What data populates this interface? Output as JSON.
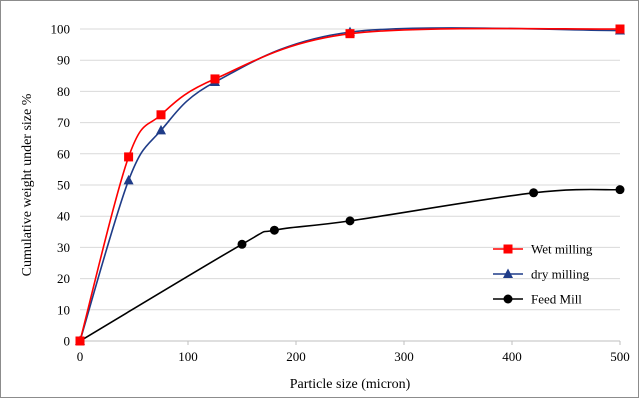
{
  "chart_data": {
    "type": "line",
    "title": "",
    "xlabel": "Particle size (micron)",
    "ylabel": "Cumulative weight under size %",
    "xlim": [
      0,
      500
    ],
    "ylim": [
      0,
      100
    ],
    "x_ticks": [
      0,
      100,
      200,
      300,
      400,
      500
    ],
    "y_ticks": [
      0,
      10,
      20,
      30,
      40,
      50,
      60,
      70,
      80,
      90,
      100
    ],
    "grid": "horizontal",
    "legend_position": "right-middle",
    "series": [
      {
        "name": "Wet milling",
        "color": "#ff0000",
        "marker": "square",
        "x": [
          0,
          45,
          75,
          125,
          250,
          500
        ],
        "y": [
          0,
          59,
          72.5,
          84,
          98.5,
          100
        ]
      },
      {
        "name": "dry milling",
        "color": "#1f3c88",
        "marker": "triangle",
        "x": [
          0,
          45,
          75,
          125,
          250,
          500
        ],
        "y": [
          0,
          51.5,
          67.5,
          83,
          99,
          99.5
        ]
      },
      {
        "name": "Feed Mill",
        "color": "#000000",
        "marker": "circle",
        "x": [
          0,
          150,
          180,
          250,
          420,
          500
        ],
        "y": [
          0,
          31,
          35.5,
          38.5,
          47.5,
          48.5
        ]
      }
    ]
  }
}
